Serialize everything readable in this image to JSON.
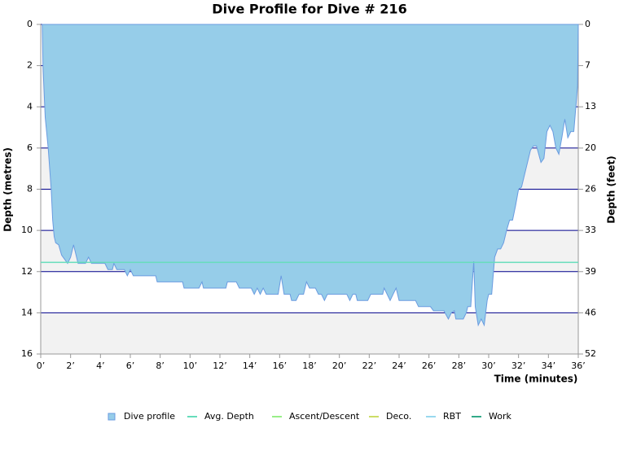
{
  "chart_data": {
    "type": "area",
    "title": "Dive Profile for Dive # 216",
    "x_label": "Time (minutes)",
    "y_label": "Depth (metres)",
    "y2_label": "Depth (feet)",
    "y_inverted": true,
    "grid": true,
    "legend": "bottom",
    "xlim": [
      0,
      36
    ],
    "xticks": [
      {
        "value": 0,
        "label": "0’"
      },
      {
        "value": 2,
        "label": "2’"
      },
      {
        "value": 4,
        "label": "4’"
      },
      {
        "value": 6,
        "label": "6’"
      },
      {
        "value": 8,
        "label": "8’"
      },
      {
        "value": 10,
        "label": "10’"
      },
      {
        "value": 12,
        "label": "12’"
      },
      {
        "value": 14,
        "label": "14’"
      },
      {
        "value": 16,
        "label": "16’"
      },
      {
        "value": 18,
        "label": "18’"
      },
      {
        "value": 20,
        "label": "20’"
      },
      {
        "value": 22,
        "label": "22’"
      },
      {
        "value": 24,
        "label": "24’"
      },
      {
        "value": 26,
        "label": "26’"
      },
      {
        "value": 28,
        "label": "28’"
      },
      {
        "value": 30,
        "label": "30’"
      },
      {
        "value": 32,
        "label": "32’"
      },
      {
        "value": 34,
        "label": "34’"
      },
      {
        "value": 36,
        "label": "36’"
      }
    ],
    "ylim": [
      0,
      16
    ],
    "yticks": [
      0,
      2,
      4,
      6,
      8,
      10,
      12,
      14,
      16
    ],
    "y2lim": [
      0,
      52.49
    ],
    "y2ticks": [
      0,
      {
        "value": 6.56,
        "label": "7"
      },
      {
        "value": 13.12,
        "label": "13"
      },
      {
        "value": 19.69,
        "label": "20"
      },
      {
        "value": 26.25,
        "label": "26"
      },
      {
        "value": 32.81,
        "label": "33"
      },
      {
        "value": 39.37,
        "label": "39"
      },
      {
        "value": 45.93,
        "label": "46"
      },
      {
        "value": 52.49,
        "label": "52"
      }
    ],
    "series": [
      {
        "name": "Dive profile",
        "color": "#96cde9",
        "stroke": "#6a9be0",
        "x": [
          0.1,
          0.15,
          0.3,
          0.5,
          0.7,
          0.8,
          0.9,
          1.0,
          1.2,
          1.4,
          1.8,
          2.0,
          2.2,
          2.5,
          3.0,
          3.2,
          3.4,
          4.3,
          4.5,
          4.8,
          4.9,
          5.1,
          5.6,
          5.8,
          6.0,
          6.2,
          7.7,
          7.8,
          9.5,
          9.6,
          10.6,
          10.8,
          10.9,
          12.4,
          12.5,
          13.1,
          13.3,
          14.1,
          14.3,
          14.5,
          14.7,
          14.9,
          15.1,
          15.9,
          16.1,
          16.3,
          16.7,
          16.8,
          17.1,
          17.3,
          17.6,
          17.8,
          18.0,
          18.4,
          18.6,
          18.8,
          19.0,
          19.2,
          20.5,
          20.7,
          20.9,
          21.1,
          21.2,
          21.9,
          22.1,
          22.9,
          23.0,
          23.4,
          23.6,
          23.8,
          24.0,
          25.1,
          25.3,
          26.1,
          26.3,
          27.0,
          27.3,
          27.5,
          27.7,
          27.8,
          28.3,
          28.5,
          28.6,
          28.8,
          29.0,
          29.1,
          29.3,
          29.5,
          29.7,
          29.9,
          30.0,
          30.2,
          30.4,
          30.6,
          30.8,
          31.0,
          31.2,
          31.4,
          31.6,
          31.8,
          32.0,
          32.2,
          32.5,
          32.8,
          33.0,
          33.2,
          33.5,
          33.7,
          33.9,
          34.1,
          34.3,
          34.5,
          34.7,
          34.9,
          35.1,
          35.3,
          35.5,
          35.7,
          35.85,
          35.95,
          36.0
        ],
        "values": [
          0,
          2,
          4.5,
          6,
          8,
          9.5,
          10.3,
          10.6,
          10.7,
          11.2,
          11.6,
          11.3,
          10.7,
          11.6,
          11.6,
          11.3,
          11.6,
          11.6,
          11.9,
          11.9,
          11.6,
          11.9,
          11.9,
          12.2,
          11.9,
          12.2,
          12.2,
          12.5,
          12.5,
          12.8,
          12.8,
          12.5,
          12.8,
          12.8,
          12.5,
          12.5,
          12.8,
          12.8,
          13.1,
          12.8,
          13.1,
          12.8,
          13.1,
          13.1,
          12.2,
          13.1,
          13.1,
          13.4,
          13.4,
          13.1,
          13.1,
          12.5,
          12.8,
          12.8,
          13.1,
          13.1,
          13.4,
          13.1,
          13.1,
          13.4,
          13.1,
          13.1,
          13.4,
          13.4,
          13.1,
          13.1,
          12.8,
          13.4,
          13.1,
          12.8,
          13.4,
          13.4,
          13.7,
          13.7,
          13.9,
          13.9,
          14.3,
          14.0,
          13.9,
          14.3,
          14.3,
          14.0,
          13.7,
          13.7,
          11.5,
          13.7,
          14.6,
          14.3,
          14.6,
          13.4,
          13.1,
          13.1,
          11.3,
          10.9,
          10.9,
          10.6,
          10.0,
          9.5,
          9.5,
          8.8,
          8.0,
          7.9,
          7.0,
          6.1,
          5.9,
          5.9,
          6.7,
          6.5,
          5.2,
          4.9,
          5.2,
          6.0,
          6.3,
          5.5,
          4.6,
          5.5,
          5.2,
          5.2,
          3.9,
          3.0,
          0
        ]
      },
      {
        "name": "Avg. Depth",
        "color": "#66ddbb",
        "x": [
          0,
          36
        ],
        "values": [
          11.55,
          11.55
        ]
      },
      {
        "name": "Ascent/Descent",
        "color": "#99ee88"
      },
      {
        "name": "Deco.",
        "color": "#ccdd66"
      },
      {
        "name": "RBT",
        "color": "#99d8ee"
      },
      {
        "name": "Work",
        "color": "#33aa88"
      }
    ]
  }
}
